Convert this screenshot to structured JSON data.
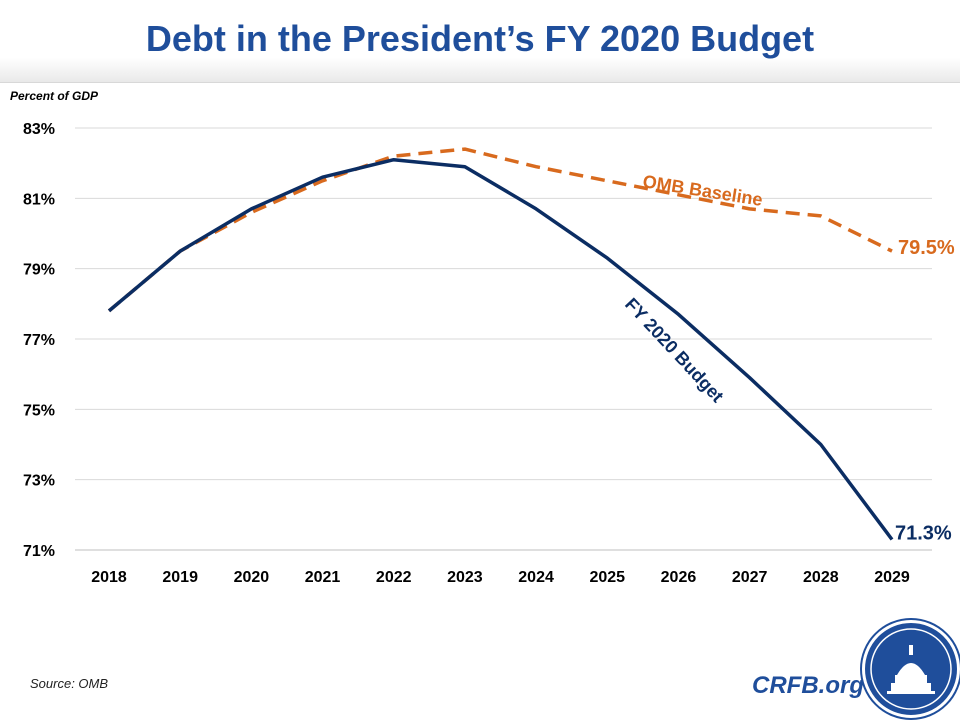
{
  "header": {
    "title": "Debt in the President’s FY 2020 Budget"
  },
  "footer": {
    "source": "Source: OMB",
    "site": "CRFB.org"
  },
  "colors": {
    "budget": "#0b2d63",
    "baseline": "#d86a1e",
    "title": "#1f4e9b"
  },
  "chart_data": {
    "type": "line",
    "ylabel": "Percent of GDP",
    "x": [
      "2018",
      "2019",
      "2020",
      "2021",
      "2022",
      "2023",
      "2024",
      "2025",
      "2026",
      "2027",
      "2028",
      "2029"
    ],
    "ylim": [
      71,
      83
    ],
    "yticks": [
      "71%",
      "73%",
      "75%",
      "77%",
      "79%",
      "81%",
      "83%"
    ],
    "yticks_values": [
      71,
      73,
      75,
      77,
      79,
      81,
      83
    ],
    "grid": true,
    "series": [
      {
        "name": "FY 2020 Budget",
        "style": "solid",
        "values": [
          77.8,
          79.5,
          80.7,
          81.6,
          82.1,
          81.9,
          80.7,
          79.3,
          77.7,
          75.9,
          74.0,
          71.3
        ],
        "end_label": "71.3%"
      },
      {
        "name": "OMB Baseline",
        "style": "dashed",
        "values": [
          77.8,
          79.5,
          80.6,
          81.5,
          82.2,
          82.4,
          81.9,
          81.5,
          81.1,
          80.7,
          80.5,
          79.5
        ],
        "end_label": "79.5%"
      }
    ]
  }
}
